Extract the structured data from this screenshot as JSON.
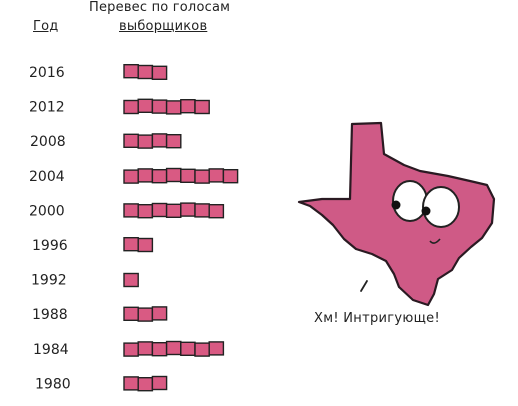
{
  "chart_data": {
    "type": "bar",
    "orientation": "horizontal",
    "title": "Перевес по голосам выборщиков",
    "xlabel": "Перевес по голосам выборщиков",
    "ylabel": "Год",
    "categories": [
      "2016",
      "2012",
      "2008",
      "2004",
      "2000",
      "1996",
      "1992",
      "1988",
      "1984",
      "1980"
    ],
    "values": [
      3,
      6,
      4,
      8,
      7,
      2,
      1,
      3,
      7,
      3
    ],
    "unit": "squares",
    "grid": false,
    "legend": "none",
    "colors": {
      "bar_fill": "#d95a83",
      "bar_stroke": "#222222",
      "texas_fill": "#cf5a86"
    }
  },
  "header": {
    "year_label": "Год",
    "margin_label_line1": "Перевес по голосам",
    "margin_label_line2": "выборщиков"
  },
  "illustration": {
    "icon": "texas-mascot-icon",
    "speech_text": "Хм! Интригующе!"
  }
}
